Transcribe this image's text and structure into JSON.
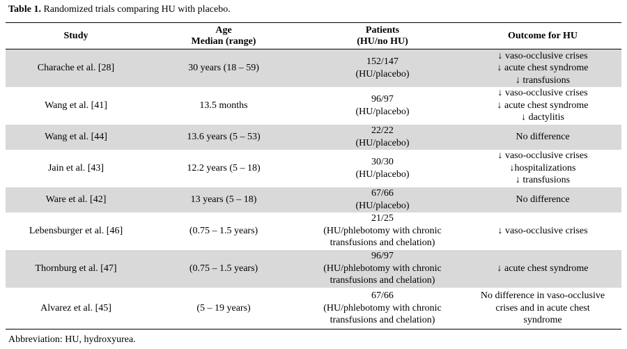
{
  "caption": {
    "label": "Table 1.",
    "text": " Randomized trials comparing HU with placebo."
  },
  "headers": [
    [
      "Study"
    ],
    [
      "Age",
      "Median (range)"
    ],
    [
      "Patients",
      "(HU/no HU)"
    ],
    [
      "Outcome for HU"
    ]
  ],
  "rows": [
    {
      "study": "Charache et al. [28]",
      "age": "30 years (18 – 59)",
      "patients": [
        "152/147",
        "(HU/placebo)"
      ],
      "outcome": [
        "↓ vaso-occlusive crises",
        "↓ acute chest syndrome",
        "↓ transfusions"
      ]
    },
    {
      "study": "Wang et al. [41]",
      "age": "13.5 months",
      "patients": [
        "96/97",
        "(HU/placebo)"
      ],
      "outcome": [
        "↓ vaso-occlusive crises",
        "↓ acute chest syndrome",
        "↓ dactylitis"
      ]
    },
    {
      "study": "Wang et al. [44]",
      "age": "13.6 years (5 – 53)",
      "patients": [
        "22/22",
        "(HU/placebo)"
      ],
      "outcome": [
        "No difference"
      ]
    },
    {
      "study": "Jain et al. [43]",
      "age": "12.2 years (5 – 18)",
      "patients": [
        "30/30",
        "(HU/placebo)"
      ],
      "outcome": [
        "↓ vaso-occlusive crises",
        "↓hospitalizations",
        "↓ transfusions"
      ]
    },
    {
      "study": "Ware et al. [42]",
      "age": "13 years (5 – 18)",
      "patients": [
        "67/66",
        "(HU/placebo)"
      ],
      "outcome": [
        "No difference"
      ]
    },
    {
      "study": "Lebensburger et al. [46]",
      "age": "(0.75 – 1.5 years)",
      "patients": [
        "21/25",
        "(HU/phlebotomy with chronic",
        "transfusions and chelation)"
      ],
      "outcome": [
        "↓ vaso-occlusive crises"
      ]
    },
    {
      "study": "Thornburg et al. [47]",
      "age": "(0.75 – 1.5 years)",
      "patients": [
        "96/97",
        "(HU/phlebotomy with chronic",
        "transfusions and chelation)"
      ],
      "outcome": [
        "↓ acute chest syndrome"
      ]
    },
    {
      "study": "Alvarez et al. [45]",
      "age": "(5 – 19 years)",
      "patients": [
        "67/66",
        "(HU/phlebotomy with chronic",
        "transfusions and chelation)"
      ],
      "outcome": [
        "No difference in vaso-occlusive",
        "crises and in acute chest",
        "syndrome"
      ]
    }
  ],
  "footnote": "Abbreviation: HU, hydroxyurea.",
  "colors": {
    "shaded_row": "#d9d9d9",
    "rule": "#000000"
  }
}
